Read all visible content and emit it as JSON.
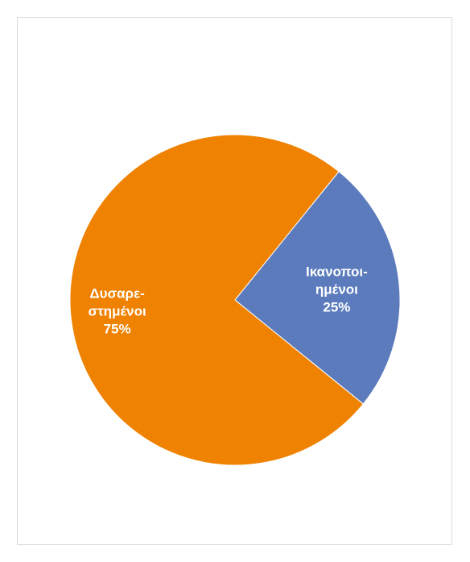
{
  "chart_data": {
    "type": "pie",
    "categories": [
      "Ικανοποιημένοι",
      "Δυσαρεστημένοι"
    ],
    "values": [
      25,
      75
    ],
    "percent_labels": [
      "25%",
      "75%"
    ],
    "label_lines": [
      [
        "Ικανοποι-",
        "ημένοι",
        "25%"
      ],
      [
        "Δυσαρε-",
        "στημένοι",
        "75%"
      ]
    ],
    "colors": [
      "#5b7bbd",
      "#ef8200"
    ],
    "start_angle_deg": -51,
    "legend": "none"
  }
}
